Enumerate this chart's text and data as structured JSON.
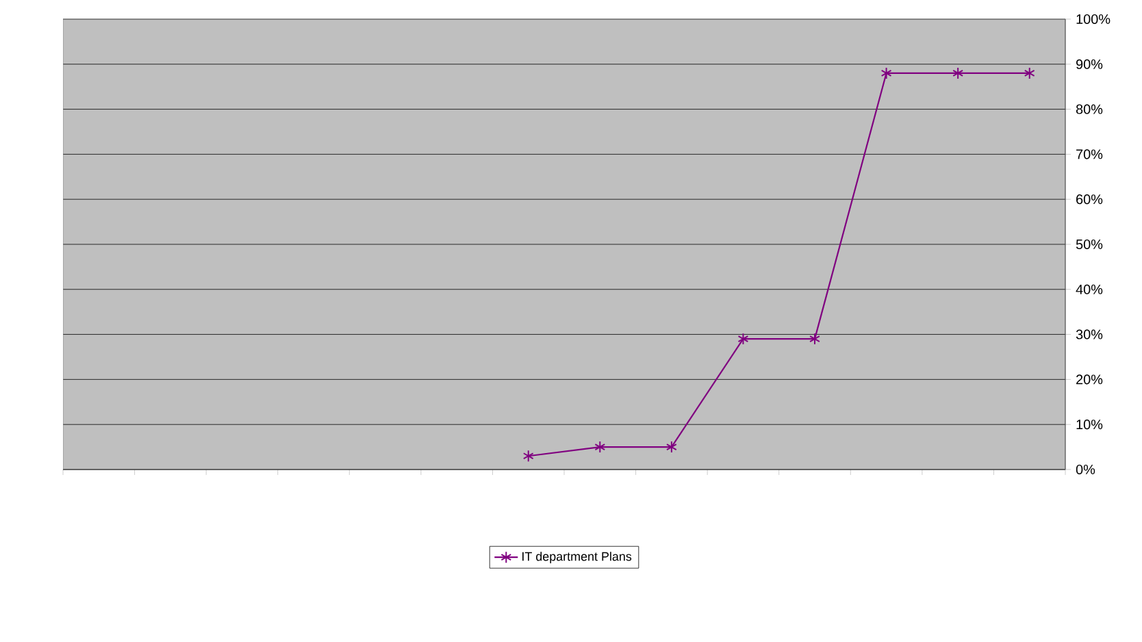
{
  "chart_data": {
    "type": "line",
    "categories": [
      null,
      null,
      null,
      null,
      null,
      null,
      null,
      null,
      null,
      null,
      null,
      null,
      null,
      null
    ],
    "series": [
      {
        "name": "IT department Plans",
        "color": "#800080",
        "values": [
          null,
          null,
          null,
          null,
          null,
          null,
          3,
          5,
          5,
          29,
          29,
          88,
          88,
          88
        ]
      }
    ],
    "ylim": [
      0,
      100
    ],
    "yticks": [
      {
        "value": 0,
        "label": "0%"
      },
      {
        "value": 10,
        "label": "10%"
      },
      {
        "value": 20,
        "label": "20%"
      },
      {
        "value": 30,
        "label": "30%"
      },
      {
        "value": 40,
        "label": "40%"
      },
      {
        "value": 50,
        "label": "50%"
      },
      {
        "value": 60,
        "label": "60%"
      },
      {
        "value": 70,
        "label": "70%"
      },
      {
        "value": 80,
        "label": "80%"
      },
      {
        "value": 90,
        "label": "90%"
      },
      {
        "value": 100,
        "label": "100%"
      }
    ],
    "grid": "y",
    "legend": "bottom",
    "marker": "cross",
    "line_style": "solid",
    "tick_labels": "y"
  }
}
